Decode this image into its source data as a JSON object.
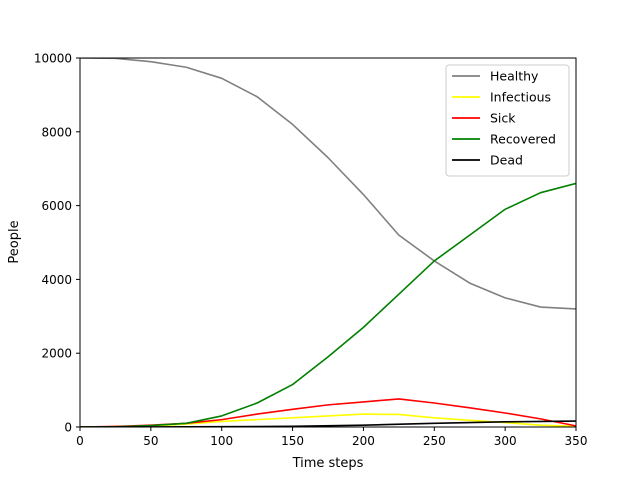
{
  "chart_data": {
    "type": "line",
    "title": "",
    "xlabel": "Time steps",
    "ylabel": "People",
    "xlim": [
      0,
      350
    ],
    "ylim": [
      0,
      10000
    ],
    "x_ticks": [
      0,
      50,
      100,
      150,
      200,
      250,
      300,
      350
    ],
    "y_ticks": [
      0,
      2000,
      4000,
      6000,
      8000,
      10000
    ],
    "x_tick_labels": [
      "0",
      "50",
      "100",
      "150",
      "200",
      "250",
      "300",
      "350"
    ],
    "y_tick_labels": [
      "0",
      "2000",
      "4000",
      "6000",
      "8000",
      "10000"
    ],
    "grid": false,
    "legend_position": "top-right",
    "series": [
      {
        "name": "Healthy",
        "color": "#808080",
        "points": [
          [
            0,
            10000
          ],
          [
            25,
            9990
          ],
          [
            50,
            9900
          ],
          [
            75,
            9750
          ],
          [
            100,
            9450
          ],
          [
            125,
            8950
          ],
          [
            150,
            8200
          ],
          [
            175,
            7300
          ],
          [
            200,
            6300
          ],
          [
            225,
            5200
          ],
          [
            250,
            4500
          ],
          [
            275,
            3900
          ],
          [
            300,
            3500
          ],
          [
            325,
            3250
          ],
          [
            350,
            3200
          ]
        ]
      },
      {
        "name": "Infectious",
        "color": "#ffff00",
        "points": [
          [
            0,
            0
          ],
          [
            25,
            10
          ],
          [
            50,
            30
          ],
          [
            75,
            80
          ],
          [
            100,
            150
          ],
          [
            125,
            200
          ],
          [
            150,
            250
          ],
          [
            175,
            300
          ],
          [
            200,
            350
          ],
          [
            225,
            340
          ],
          [
            250,
            250
          ],
          [
            275,
            180
          ],
          [
            300,
            120
          ],
          [
            325,
            50
          ],
          [
            350,
            20
          ]
        ]
      },
      {
        "name": "Sick",
        "color": "#ff0000",
        "points": [
          [
            0,
            0
          ],
          [
            25,
            15
          ],
          [
            50,
            50
          ],
          [
            75,
            100
          ],
          [
            100,
            200
          ],
          [
            125,
            350
          ],
          [
            150,
            480
          ],
          [
            175,
            600
          ],
          [
            200,
            680
          ],
          [
            225,
            760
          ],
          [
            250,
            650
          ],
          [
            275,
            520
          ],
          [
            300,
            380
          ],
          [
            325,
            220
          ],
          [
            350,
            30
          ]
        ]
      },
      {
        "name": "Recovered",
        "color": "#008000",
        "points": [
          [
            0,
            0
          ],
          [
            25,
            5
          ],
          [
            50,
            40
          ],
          [
            75,
            100
          ],
          [
            100,
            300
          ],
          [
            125,
            650
          ],
          [
            150,
            1150
          ],
          [
            175,
            1900
          ],
          [
            200,
            2700
          ],
          [
            225,
            3600
          ],
          [
            250,
            4500
          ],
          [
            275,
            5200
          ],
          [
            300,
            5900
          ],
          [
            325,
            6350
          ],
          [
            350,
            6600
          ]
        ]
      },
      {
        "name": "Dead",
        "color": "#000000",
        "points": [
          [
            0,
            0
          ],
          [
            50,
            2
          ],
          [
            100,
            8
          ],
          [
            150,
            20
          ],
          [
            200,
            50
          ],
          [
            250,
            100
          ],
          [
            300,
            140
          ],
          [
            350,
            160
          ]
        ]
      }
    ]
  }
}
